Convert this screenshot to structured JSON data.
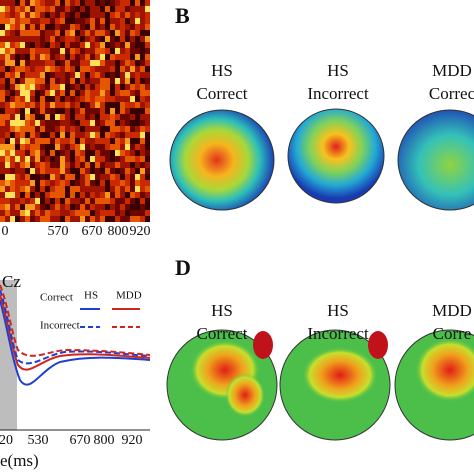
{
  "panel_a": {
    "x_ticks": [
      0,
      570,
      670,
      800,
      920
    ]
  },
  "panel_b": {
    "label": "B",
    "maps": [
      {
        "group": "HS",
        "condition": "Correct"
      },
      {
        "group": "HS",
        "condition": "Incorrect"
      },
      {
        "group": "MDD",
        "condition": "Correc"
      }
    ]
  },
  "panel_c": {
    "electrode": "Cz",
    "legend": {
      "row1": "Correct",
      "row2": "Incorrect",
      "col1": "HS",
      "col2": "MDD"
    },
    "x_ticks": [
      20,
      530,
      670,
      800,
      920
    ],
    "x_label": "e(ms)"
  },
  "panel_d": {
    "label": "D",
    "maps": [
      {
        "group": "HS",
        "condition": "Correct"
      },
      {
        "group": "HS",
        "condition": "Incorrect"
      },
      {
        "group": "MDD",
        "condition": "Corre"
      }
    ]
  }
}
